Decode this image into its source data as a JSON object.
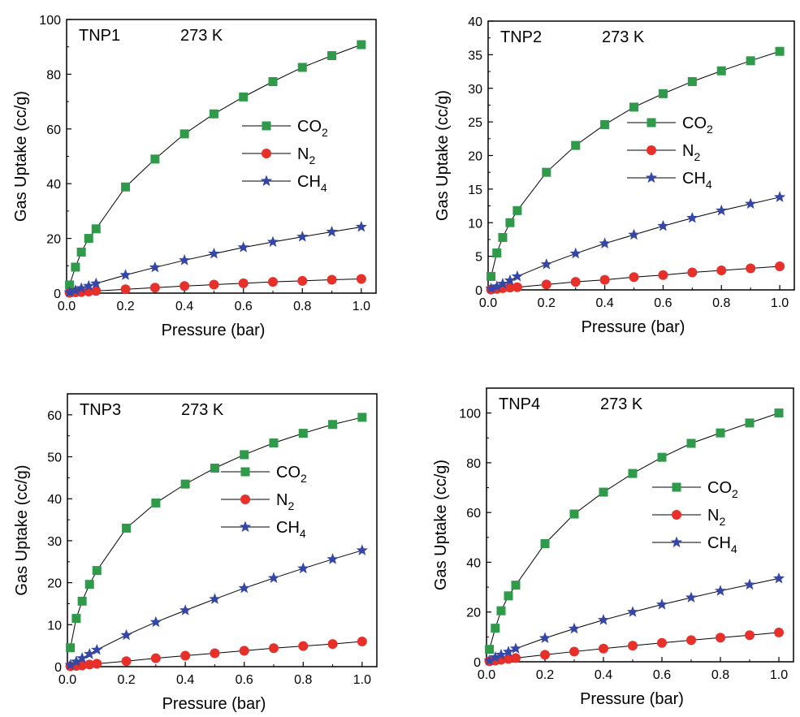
{
  "chart_data": [
    {
      "type": "scatter",
      "panel_label": "TNP1",
      "temperature": "273 K",
      "xlabel": "Pressure (bar)",
      "ylabel": "Gas Uptake (cc/g)",
      "xlim": [
        0,
        1.05
      ],
      "ylim": [
        0,
        100
      ],
      "xticks": [
        "0.0",
        "0.2",
        "0.4",
        "0.6",
        "0.8",
        "1.0"
      ],
      "yticks": [
        "0",
        "20",
        "40",
        "60",
        "80",
        "100"
      ],
      "legend": "center-right",
      "series": [
        {
          "name": "CO",
          "sub": "2",
          "marker": "square",
          "color": "#2e9a4a",
          "x": [
            0.01,
            0.03,
            0.05,
            0.075,
            0.1,
            0.2,
            0.3,
            0.4,
            0.5,
            0.6,
            0.7,
            0.8,
            0.9,
            1.0
          ],
          "y": [
            3,
            9.5,
            15,
            20,
            23.5,
            38.8,
            49,
            58.2,
            65.5,
            71.7,
            77.3,
            82.5,
            86.8,
            90.8
          ]
        },
        {
          "name": "N",
          "sub": "2",
          "marker": "circle",
          "color": "#e8302a",
          "x": [
            0.01,
            0.03,
            0.05,
            0.075,
            0.1,
            0.2,
            0.3,
            0.4,
            0.5,
            0.6,
            0.7,
            0.8,
            0.9,
            1.0
          ],
          "y": [
            0.1,
            0.3,
            0.4,
            0.6,
            0.8,
            1.4,
            2.0,
            2.6,
            3.1,
            3.6,
            4.1,
            4.5,
            4.9,
            5.2
          ]
        },
        {
          "name": "CH",
          "sub": "4",
          "marker": "star",
          "color": "#3547a6",
          "x": [
            0.01,
            0.03,
            0.05,
            0.075,
            0.1,
            0.2,
            0.3,
            0.4,
            0.5,
            0.6,
            0.7,
            0.8,
            0.9,
            1.0
          ],
          "y": [
            0.3,
            1.0,
            1.8,
            2.6,
            3.5,
            6.6,
            9.4,
            12.0,
            14.4,
            16.7,
            18.7,
            20.6,
            22.4,
            24.2
          ]
        }
      ]
    },
    {
      "type": "scatter",
      "panel_label": "TNP2",
      "temperature": "273 K",
      "xlabel": "Pressure (bar)",
      "ylabel": "Gas Uptake (cc/g)",
      "xlim": [
        0,
        1.05
      ],
      "ylim": [
        0,
        40
      ],
      "xticks": [
        "0.0",
        "0.2",
        "0.4",
        "0.6",
        "0.8",
        "1.0"
      ],
      "yticks": [
        "0",
        "5",
        "10",
        "15",
        "20",
        "25",
        "30",
        "35",
        "40"
      ],
      "legend": "center-right",
      "series": [
        {
          "name": "CO",
          "sub": "2",
          "marker": "square",
          "color": "#2e9a4a",
          "x": [
            0.01,
            0.03,
            0.05,
            0.075,
            0.1,
            0.2,
            0.3,
            0.4,
            0.5,
            0.6,
            0.7,
            0.8,
            0.9,
            1.0
          ],
          "y": [
            2.0,
            5.5,
            7.8,
            10,
            11.8,
            17.5,
            21.5,
            24.6,
            27.2,
            29.2,
            31.0,
            32.6,
            34.1,
            35.5
          ]
        },
        {
          "name": "N",
          "sub": "2",
          "marker": "circle",
          "color": "#e8302a",
          "x": [
            0.01,
            0.03,
            0.05,
            0.075,
            0.1,
            0.2,
            0.3,
            0.4,
            0.5,
            0.6,
            0.7,
            0.8,
            0.9,
            1.0
          ],
          "y": [
            0.05,
            0.15,
            0.25,
            0.35,
            0.4,
            0.8,
            1.2,
            1.5,
            1.9,
            2.2,
            2.6,
            2.9,
            3.2,
            3.5
          ]
        },
        {
          "name": "CH",
          "sub": "4",
          "marker": "star",
          "color": "#3547a6",
          "x": [
            0.01,
            0.03,
            0.05,
            0.075,
            0.1,
            0.2,
            0.3,
            0.4,
            0.5,
            0.6,
            0.7,
            0.8,
            0.9,
            1.0
          ],
          "y": [
            0.2,
            0.5,
            0.9,
            1.4,
            2.0,
            3.8,
            5.4,
            6.9,
            8.2,
            9.5,
            10.7,
            11.8,
            12.8,
            13.8
          ]
        }
      ]
    },
    {
      "type": "scatter",
      "panel_label": "TNP3",
      "temperature": "273 K",
      "xlabel": "Pressure (bar)",
      "ylabel": "Gas Uptake (cc/g)",
      "xlim": [
        0,
        1.05
      ],
      "ylim": [
        0,
        65
      ],
      "xticks": [
        "0.0",
        "0.2",
        "0.4",
        "0.6",
        "0.8",
        "1.0"
      ],
      "yticks": [
        "0",
        "10",
        "20",
        "30",
        "40",
        "50",
        "60"
      ],
      "legend": "center-right",
      "series": [
        {
          "name": "CO",
          "sub": "2",
          "marker": "square",
          "color": "#2e9a4a",
          "x": [
            0.01,
            0.03,
            0.05,
            0.075,
            0.1,
            0.2,
            0.3,
            0.4,
            0.5,
            0.6,
            0.7,
            0.8,
            0.9,
            1.0
          ],
          "y": [
            4.5,
            11.5,
            15.6,
            19.6,
            22.9,
            33.0,
            39.0,
            43.5,
            47.3,
            50.5,
            53.3,
            55.6,
            57.7,
            59.4
          ]
        },
        {
          "name": "N",
          "sub": "2",
          "marker": "circle",
          "color": "#e8302a",
          "x": [
            0.01,
            0.03,
            0.05,
            0.075,
            0.1,
            0.2,
            0.3,
            0.4,
            0.5,
            0.6,
            0.7,
            0.8,
            0.9,
            1.0
          ],
          "y": [
            0.1,
            0.2,
            0.3,
            0.5,
            0.7,
            1.3,
            2.0,
            2.6,
            3.2,
            3.8,
            4.4,
            4.9,
            5.4,
            6.0
          ]
        },
        {
          "name": "CH",
          "sub": "4",
          "marker": "star",
          "color": "#3547a6",
          "x": [
            0.01,
            0.03,
            0.05,
            0.075,
            0.1,
            0.2,
            0.3,
            0.4,
            0.5,
            0.6,
            0.7,
            0.8,
            0.9,
            1.0
          ],
          "y": [
            0.4,
            1.2,
            2.0,
            3.0,
            4.0,
            7.5,
            10.6,
            13.4,
            16.1,
            18.7,
            21.1,
            23.4,
            25.6,
            27.7
          ]
        }
      ]
    },
    {
      "type": "scatter",
      "panel_label": "TNP4",
      "temperature": "273 K",
      "xlabel": "Pressure (bar)",
      "ylabel": "Gas Uptake (cc/g)",
      "xlim": [
        0,
        1.05
      ],
      "ylim": [
        0,
        110
      ],
      "xticks": [
        "0.0",
        "0.2",
        "0.4",
        "0.6",
        "0.8",
        "1.0"
      ],
      "yticks": [
        "0",
        "20",
        "40",
        "60",
        "80",
        "100"
      ],
      "legend": "center-right",
      "series": [
        {
          "name": "CO",
          "sub": "2",
          "marker": "square",
          "color": "#2e9a4a",
          "x": [
            0.01,
            0.03,
            0.05,
            0.075,
            0.1,
            0.2,
            0.3,
            0.4,
            0.5,
            0.6,
            0.7,
            0.8,
            0.9,
            1.0
          ],
          "y": [
            5,
            13.5,
            20.5,
            26.5,
            30.8,
            47.5,
            59.4,
            68.2,
            75.7,
            82.2,
            87.8,
            92.0,
            96.0,
            100
          ]
        },
        {
          "name": "N",
          "sub": "2",
          "marker": "circle",
          "color": "#e8302a",
          "x": [
            0.01,
            0.03,
            0.05,
            0.075,
            0.1,
            0.2,
            0.3,
            0.4,
            0.5,
            0.6,
            0.7,
            0.8,
            0.9,
            1.0
          ],
          "y": [
            0.2,
            0.5,
            0.8,
            1.2,
            1.5,
            2.8,
            4.1,
            5.3,
            6.5,
            7.6,
            8.7,
            9.7,
            10.7,
            11.8
          ]
        },
        {
          "name": "CH",
          "sub": "4",
          "marker": "star",
          "color": "#3547a6",
          "x": [
            0.01,
            0.03,
            0.05,
            0.075,
            0.1,
            0.2,
            0.3,
            0.4,
            0.5,
            0.6,
            0.7,
            0.8,
            0.9,
            1.0
          ],
          "y": [
            0.5,
            1.8,
            2.8,
            4.0,
            5.3,
            9.5,
            13.3,
            16.8,
            20.0,
            23.0,
            25.8,
            28.5,
            31.0,
            33.5
          ]
        }
      ]
    }
  ]
}
